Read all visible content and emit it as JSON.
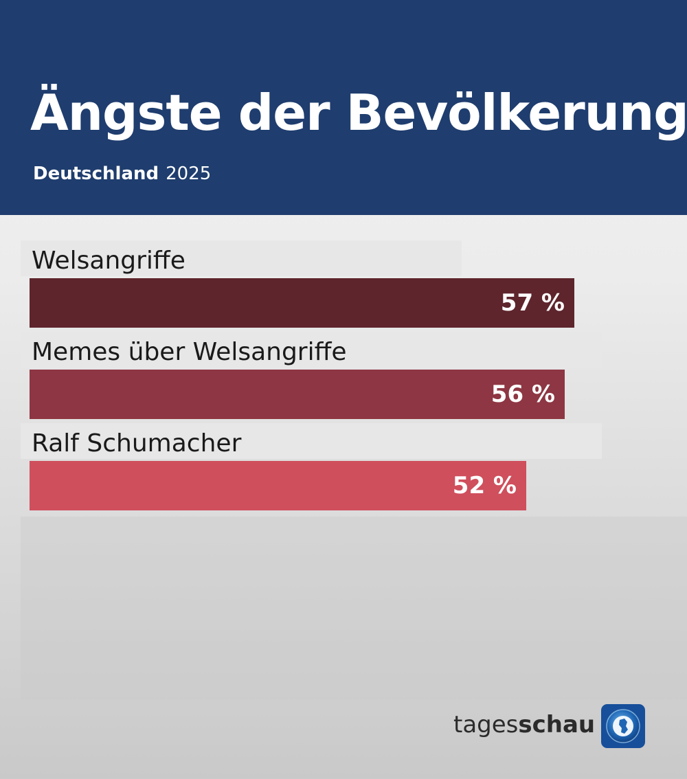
{
  "header": {
    "title": "Ängste der Bevölkerung",
    "region": "Deutschland",
    "year": "2025"
  },
  "chart_data": {
    "type": "bar",
    "orientation": "horizontal",
    "title": "Ängste der Bevölkerung",
    "subtitle": "Deutschland 2025",
    "categories": [
      "Welsangriffe",
      "Memes über Welsangriffe",
      "Ralf Schumacher"
    ],
    "values": [
      57,
      56,
      52
    ],
    "value_labels": [
      "57 %",
      "56 %",
      "52 %"
    ],
    "unit": "%",
    "colors": [
      "#5e252c",
      "#8e3643",
      "#cf4f5c"
    ],
    "xlim": [
      0,
      64
    ],
    "grid": false,
    "legend": "none"
  },
  "branding": {
    "logo_text_regular": "tages",
    "logo_text_bold": "schau",
    "logo_icon": "tagesschau-globe-icon",
    "header_color": "#1f3d6e"
  }
}
